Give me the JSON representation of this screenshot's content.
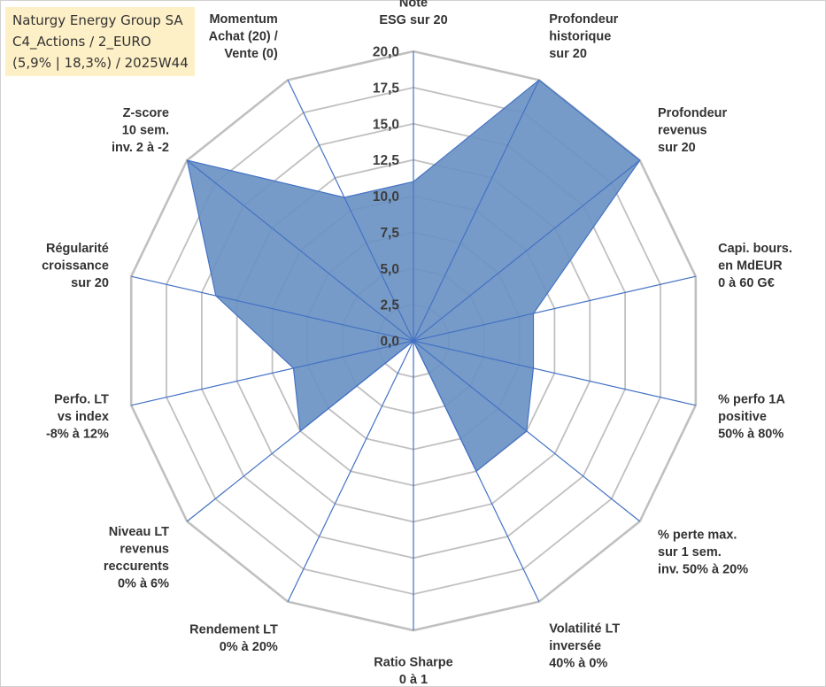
{
  "title_lines": [
    "Naturgy Energy Group SA",
    "C4_Actions / 2_EURO",
    "(5,9% | 18,3%) / 2025W44"
  ],
  "chart_data": {
    "type": "radar",
    "title": "Naturgy Energy Group SA C4_Actions / 2_EURO (5,9% | 18,3%) / 2025W44",
    "axes": [
      [
        "Note",
        "ESG sur 20"
      ],
      [
        "Profondeur",
        "historique",
        "sur 20"
      ],
      [
        "Profondeur",
        "revenus",
        "sur 20"
      ],
      [
        "Capi. bours.",
        "en MdEUR",
        "0 à 60 G€"
      ],
      [
        "% perfo 1A",
        "positive",
        "50% à 80%"
      ],
      [
        "% perte max.",
        "sur 1 sem.",
        "inv. 50% à 20%"
      ],
      [
        "Volatilité LT",
        "inversée",
        "40% à 0%"
      ],
      [
        "Ratio Sharpe",
        "0 à 1"
      ],
      [
        "Rendement LT",
        "0% à 20%"
      ],
      [
        "Niveau LT",
        "revenus",
        "reccurents",
        "0% à 6%"
      ],
      [
        "Perfo. LT",
        "vs index",
        "-8% à 12%"
      ],
      [
        "Régularité",
        "croissance",
        "sur 20"
      ],
      [
        "Z-score",
        "10 sem.",
        "inv. 2 à -2"
      ],
      [
        "Momentum",
        "Achat (20) /",
        "Vente (0)"
      ]
    ],
    "series": [
      {
        "values": [
          11.0,
          20.0,
          20.0,
          8.5,
          8.5,
          10.0,
          10.0,
          0.0,
          0.0,
          10.0,
          8.5,
          14.0,
          20.0,
          11.0
        ]
      }
    ],
    "rlim": [
      0,
      20
    ],
    "ticks": [
      "0,0",
      "2,5",
      "5,0",
      "7,5",
      "10,0",
      "12,5",
      "15,0",
      "17,5",
      "20,0"
    ],
    "grid": true,
    "colors": {
      "fill": "#6b93c3",
      "stroke": "#4472c4",
      "spoke": "#4472c4",
      "grid": "#c0c0c0"
    }
  }
}
